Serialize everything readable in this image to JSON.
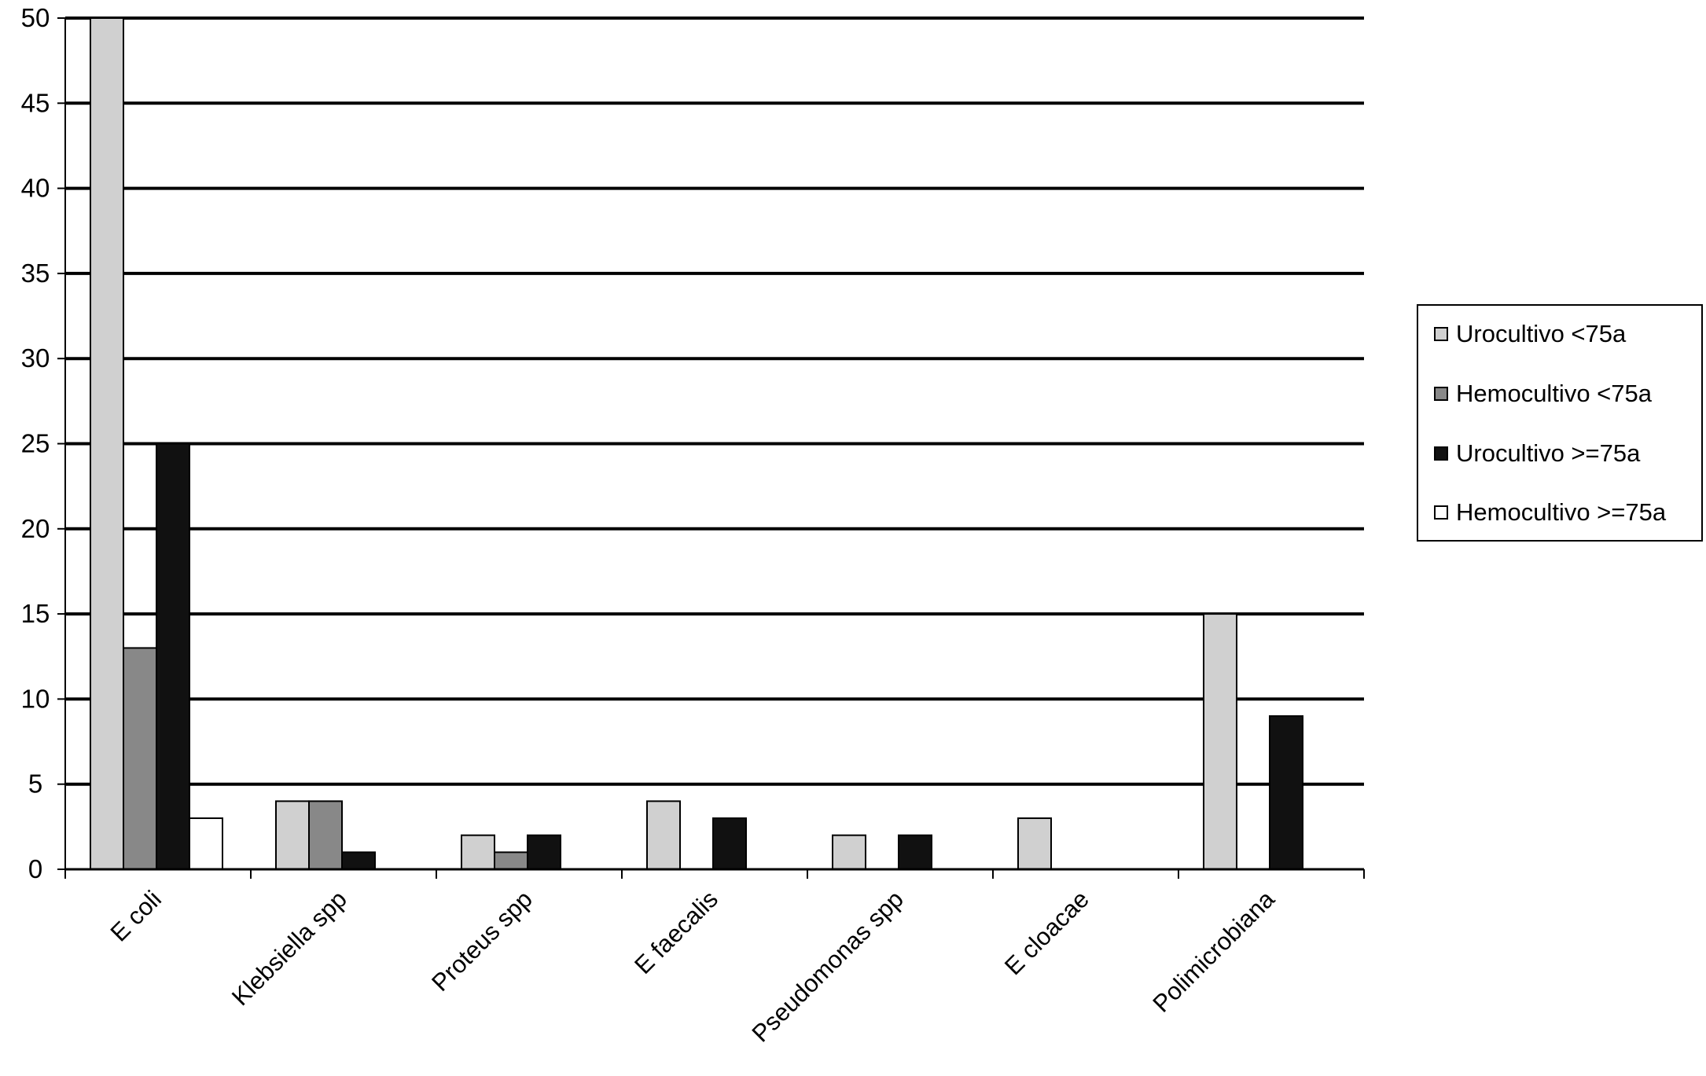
{
  "chart_data": {
    "type": "bar",
    "title": "",
    "xlabel": "",
    "ylabel": "",
    "ylim": [
      0,
      50
    ],
    "yticks": [
      0,
      5,
      10,
      15,
      20,
      25,
      30,
      35,
      40,
      45,
      50
    ],
    "grid": true,
    "legend_position": "right",
    "categories": [
      "E coli",
      "Klebsiella spp",
      "Proteus spp",
      "E faecalis",
      "Pseudomonas spp",
      "E cloacae",
      "Polimicrobiana"
    ],
    "series": [
      {
        "name": "Urocultivo <75a",
        "color": "#d0d0d0",
        "values": [
          50,
          4,
          2,
          4,
          2,
          3,
          15
        ]
      },
      {
        "name": "Hemocultivo <75a",
        "color": "#888888",
        "values": [
          13,
          4,
          1,
          0,
          0,
          0,
          0
        ]
      },
      {
        "name": "Urocultivo >=75a",
        "color": "#111111",
        "values": [
          25,
          1,
          2,
          3,
          2,
          0,
          9
        ]
      },
      {
        "name": "Hemocultivo >=75a",
        "color": "#ffffff",
        "values": [
          3,
          0,
          0,
          0,
          0,
          0,
          0
        ]
      }
    ]
  }
}
